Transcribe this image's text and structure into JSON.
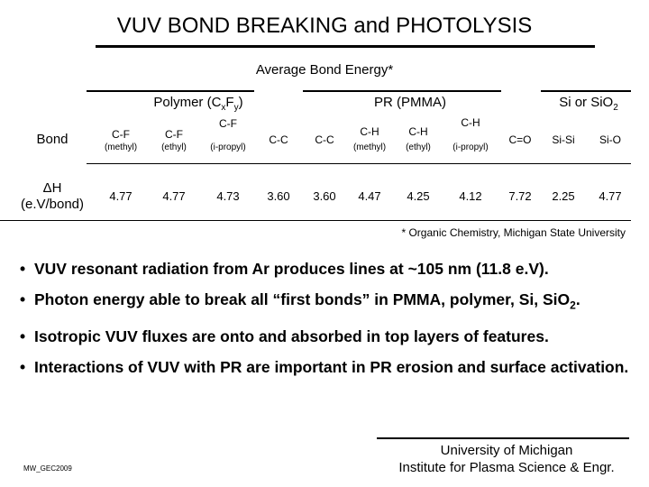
{
  "title": "VUV BOND BREAKING and PHOTOLYSIS",
  "subtitle": "Average Bond Energy*",
  "groups": {
    "polymer": "Polymer (CxFy)",
    "pmma": "PR (PMMA)",
    "si": "Si or SiO2"
  },
  "row_labels": {
    "bond": "Bond",
    "dh_line1": "ΔH",
    "dh_line2": "(e.V/bond)"
  },
  "columns": [
    {
      "bond": "C-F",
      "sub": "(methyl)",
      "value": "4.77"
    },
    {
      "bond": "C-F",
      "sub": "(ethyl)",
      "value": "4.77"
    },
    {
      "bond": "C-F",
      "sub": "(i-propyl)",
      "value": "4.73"
    },
    {
      "bond": "C-C",
      "sub": "",
      "value": "3.60"
    },
    {
      "bond": "C-C",
      "sub": "",
      "value": "3.60"
    },
    {
      "bond": "C-H",
      "sub": "(methyl)",
      "value": "4.47"
    },
    {
      "bond": "C-H",
      "sub": "(ethyl)",
      "value": "4.25"
    },
    {
      "bond": "C-H",
      "sub": "(i-propyl)",
      "value": "4.12"
    },
    {
      "bond": "C=O",
      "sub": "",
      "value": "7.72"
    },
    {
      "bond": "Si-Si",
      "sub": "",
      "value": "2.25"
    },
    {
      "bond": "Si-O",
      "sub": "",
      "value": "4.77"
    }
  ],
  "footnote": "* Organic Chemistry, Michigan State University",
  "bullets": [
    "VUV resonant radiation from Ar produces lines at ~105 nm (11.8 e.V).",
    "Photon energy able to break all “first bonds” in PMMA, polymer, Si, SiO2.",
    "Isotropic VUV fluxes are onto and absorbed in top layers of features.",
    "Interactions of VUV with PR are important in PR erosion and surface activation."
  ],
  "bullet_symbol": "•",
  "left_footer": "MW_GEC2009",
  "institution_line1": "University of Michigan",
  "institution_line2": "Institute for Plasma Science & Engr."
}
